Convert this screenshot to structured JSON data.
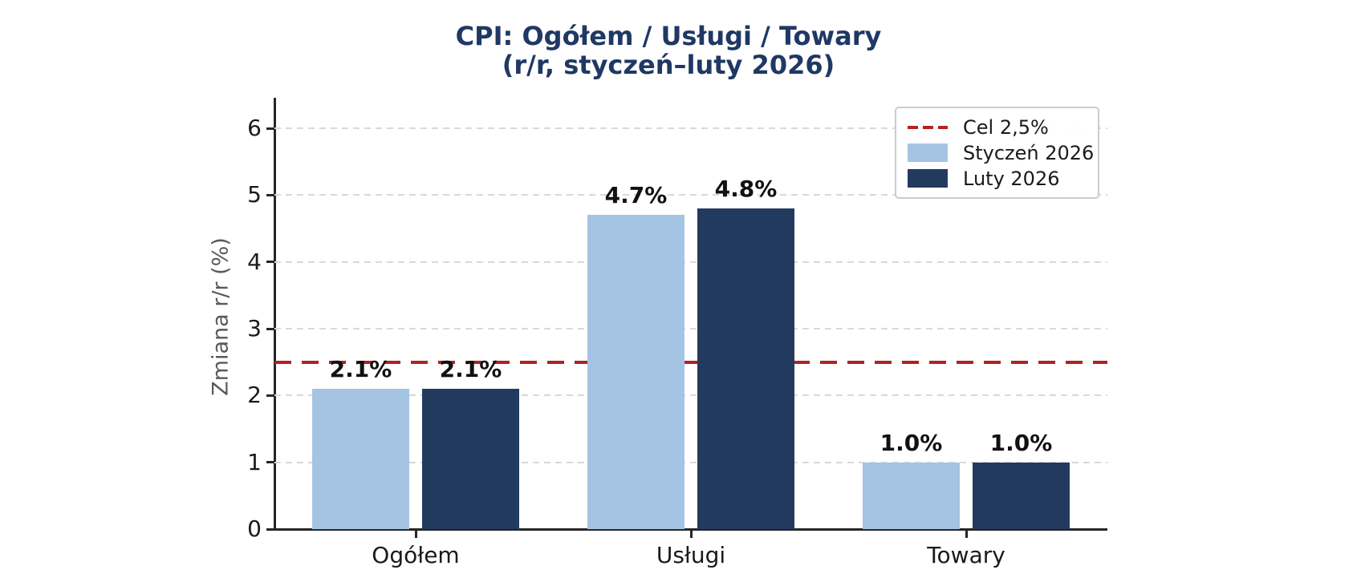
{
  "title": {
    "line1": "CPI: Ogółem / Usługi / Towary",
    "line2": "(r/r, styczeń–luty 2026)"
  },
  "legend": {
    "target": {
      "label": "Cel 2,5%",
      "color": "#b22222",
      "style": "dashed-line"
    },
    "series": [
      {
        "label": "Styczeń 2026",
        "color": "#a5c4e4"
      },
      {
        "label": "Luty 2026",
        "color": "#233a5f"
      }
    ]
  },
  "chart_data": {
    "type": "bar",
    "title": "CPI: Ogółem / Usługi / Towary (r/r, styczeń–luty 2026)",
    "categories": [
      "Ogółem",
      "Usługi",
      "Towary"
    ],
    "series": [
      {
        "name": "Styczeń 2026",
        "color": "#a5c4e4",
        "values": [
          2.1,
          4.7,
          1.0
        ],
        "labels": [
          "2.1%",
          "4.7%",
          "1.0%"
        ]
      },
      {
        "name": "Luty 2026",
        "color": "#233a5f",
        "values": [
          2.1,
          4.8,
          1.0
        ],
        "labels": [
          "2.1%",
          "4.8%",
          "1.0%"
        ]
      }
    ],
    "target_line": {
      "value": 2.5,
      "label": "Cel 2,5%",
      "color": "#b22222",
      "style": "dashed"
    },
    "xlabel": "",
    "ylabel": "Zmiana r/r (%)",
    "ylim": [
      0,
      6.45
    ],
    "yticks": [
      0,
      1,
      2,
      3,
      4,
      5,
      6
    ],
    "grid": "horizontal-dashed",
    "legend_position": "upper-right",
    "colors": {
      "title_text": "#1f3864",
      "axis_text": "#1a1a1a",
      "ylabel_text": "#595959",
      "gridline": "#d9d9d9",
      "spine": "#262626"
    }
  }
}
